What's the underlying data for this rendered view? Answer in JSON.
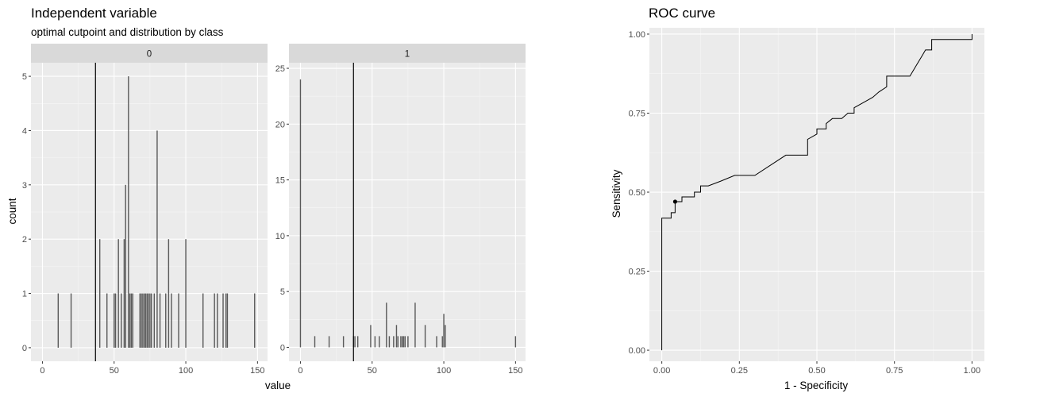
{
  "chart_data": [
    {
      "type": "bar",
      "title": "Independent variable",
      "subtitle": "optimal cutpoint and distribution by class",
      "xlabel": "value",
      "ylabel": "count",
      "cutpoint": 37,
      "panels": [
        {
          "strip": "0",
          "xlim": [
            -8,
            157
          ],
          "ylim": [
            -0.25,
            5.25
          ],
          "xticks": [
            0,
            50,
            100,
            150
          ],
          "yticks": [
            0,
            1,
            2,
            3,
            4,
            5
          ],
          "x": [
            11,
            20,
            40,
            45,
            50,
            51,
            53,
            55,
            57,
            58,
            60,
            61,
            62,
            63,
            68,
            69,
            70,
            71,
            72,
            73,
            74,
            75,
            76,
            78,
            80,
            82,
            86,
            88,
            90,
            95,
            100,
            112,
            120,
            122,
            126,
            128,
            129,
            148
          ],
          "counts": [
            1,
            1,
            2,
            1,
            1,
            1,
            2,
            1,
            2,
            3,
            5,
            1,
            1,
            1,
            1,
            1,
            1,
            1,
            1,
            1,
            1,
            1,
            1,
            1,
            4,
            1,
            1,
            2,
            1,
            1,
            2,
            1,
            1,
            1,
            1,
            1,
            1,
            1
          ]
        },
        {
          "strip": "1",
          "xlim": [
            -8,
            157
          ],
          "ylim": [
            -1.25,
            25.5
          ],
          "xticks": [
            0,
            50,
            100,
            150
          ],
          "yticks": [
            0,
            5,
            10,
            15,
            20,
            25
          ],
          "x": [
            0,
            10,
            20,
            30,
            37,
            38,
            40,
            49,
            52,
            55,
            60,
            62,
            65,
            67,
            68,
            70,
            71,
            72,
            73,
            75,
            80,
            87,
            95,
            99,
            100,
            101,
            150
          ],
          "counts": [
            24,
            1,
            1,
            1,
            1,
            1,
            1,
            2,
            1,
            1,
            4,
            1,
            1,
            2,
            1,
            1,
            1,
            1,
            1,
            1,
            4,
            2,
            1,
            1,
            3,
            2,
            1
          ]
        }
      ]
    },
    {
      "type": "line",
      "title": "ROC curve",
      "xlabel": "1 - Specificity",
      "ylabel": "Sensitivity",
      "xlim": [
        -0.04,
        1.04
      ],
      "ylim": [
        -0.035,
        1.02
      ],
      "xticks": [
        "0.00",
        "0.25",
        "0.50",
        "0.75",
        "1.00"
      ],
      "yticks": [
        "0.00",
        "0.25",
        "0.50",
        "0.75",
        "1.00"
      ],
      "optimal_point": {
        "x": 0.043,
        "y": 0.47
      },
      "points": [
        [
          0.0,
          0.0
        ],
        [
          0.0,
          0.418
        ],
        [
          0.03,
          0.418
        ],
        [
          0.03,
          0.435
        ],
        [
          0.043,
          0.435
        ],
        [
          0.043,
          0.47
        ],
        [
          0.065,
          0.47
        ],
        [
          0.065,
          0.485
        ],
        [
          0.105,
          0.485
        ],
        [
          0.105,
          0.5
        ],
        [
          0.125,
          0.5
        ],
        [
          0.125,
          0.52
        ],
        [
          0.15,
          0.52
        ],
        [
          0.19,
          0.535
        ],
        [
          0.235,
          0.553
        ],
        [
          0.3,
          0.553
        ],
        [
          0.4,
          0.617
        ],
        [
          0.47,
          0.617
        ],
        [
          0.47,
          0.667
        ],
        [
          0.5,
          0.684
        ],
        [
          0.5,
          0.7
        ],
        [
          0.53,
          0.7
        ],
        [
          0.53,
          0.717
        ],
        [
          0.55,
          0.733
        ],
        [
          0.58,
          0.733
        ],
        [
          0.6,
          0.75
        ],
        [
          0.62,
          0.75
        ],
        [
          0.62,
          0.767
        ],
        [
          0.68,
          0.8
        ],
        [
          0.7,
          0.817
        ],
        [
          0.725,
          0.833
        ],
        [
          0.725,
          0.867
        ],
        [
          0.8,
          0.867
        ],
        [
          0.82,
          0.9
        ],
        [
          0.84,
          0.933
        ],
        [
          0.85,
          0.95
        ],
        [
          0.87,
          0.95
        ],
        [
          0.87,
          0.983
        ],
        [
          1.0,
          0.983
        ],
        [
          1.0,
          1.0
        ]
      ]
    }
  ]
}
